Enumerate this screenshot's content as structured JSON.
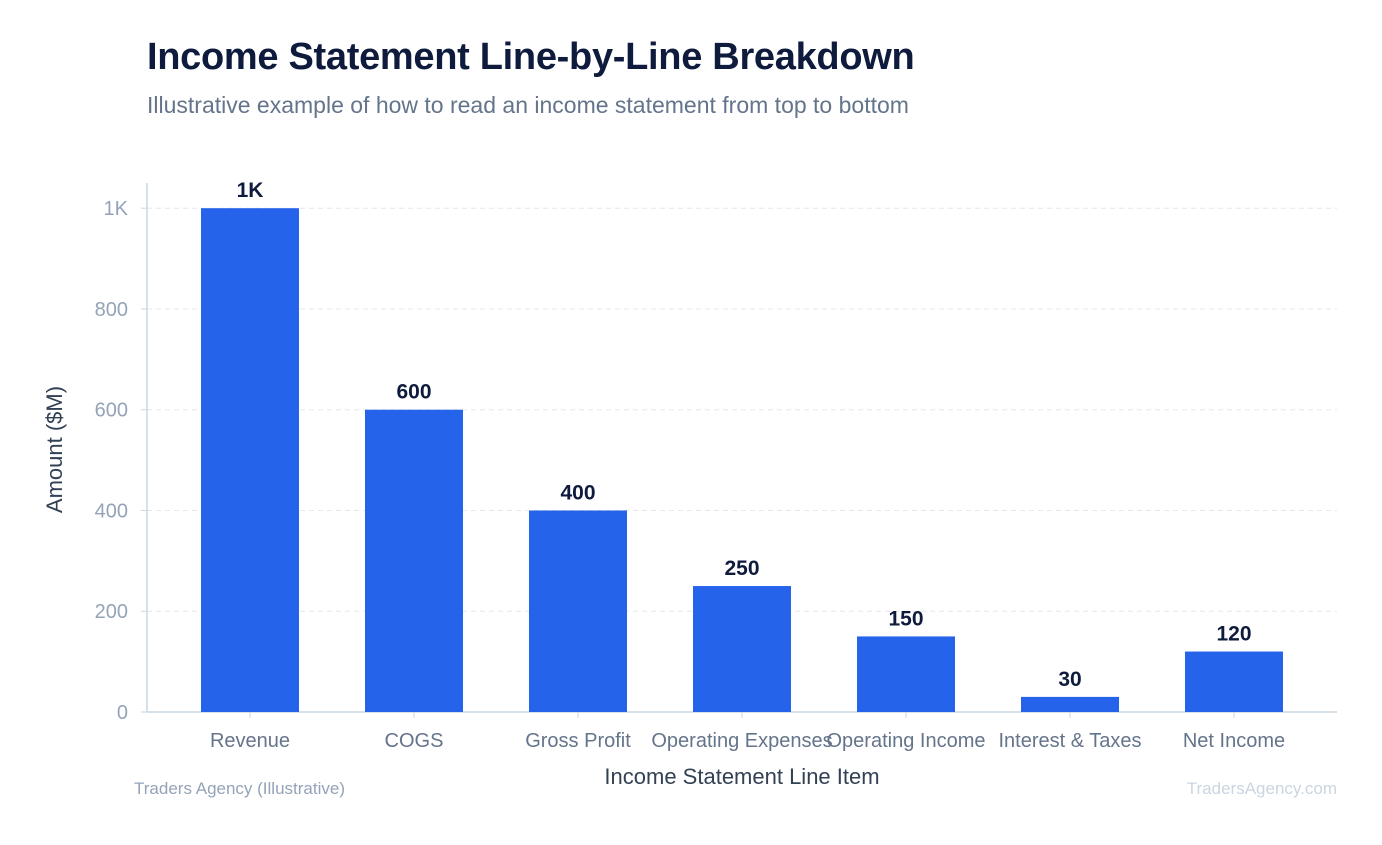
{
  "title": "Income Statement Line-by-Line Breakdown",
  "subtitle": "Illustrative example of how to read an income statement from top to bottom",
  "footer": {
    "source": "Traders Agency (Illustrative)",
    "watermark": "TradersAgency.com"
  },
  "colors": {
    "bar": "#2563eb",
    "grid": "#e5e7eb",
    "axis": "#cbd5e1",
    "tick_text": "#94a3b8",
    "category_text": "#64748b",
    "value_label": "#0f1b3d",
    "axis_label": "#334155"
  },
  "chart_data": {
    "type": "bar",
    "categories": [
      "Revenue",
      "COGS",
      "Gross Profit",
      "Operating Expenses",
      "Operating Income",
      "Interest & Taxes",
      "Net Income"
    ],
    "values": [
      1000,
      600,
      400,
      250,
      150,
      30,
      120
    ],
    "value_labels": [
      "1K",
      "600",
      "400",
      "250",
      "150",
      "30",
      "120"
    ],
    "xlabel": "Income Statement Line Item",
    "ylabel": "Amount ($M)",
    "ylim": [
      0,
      1050
    ],
    "yticks": [
      0,
      200,
      400,
      600,
      800,
      1000
    ],
    "ytick_labels": [
      "0",
      "200",
      "400",
      "600",
      "800",
      "1K"
    ],
    "grid": true
  }
}
